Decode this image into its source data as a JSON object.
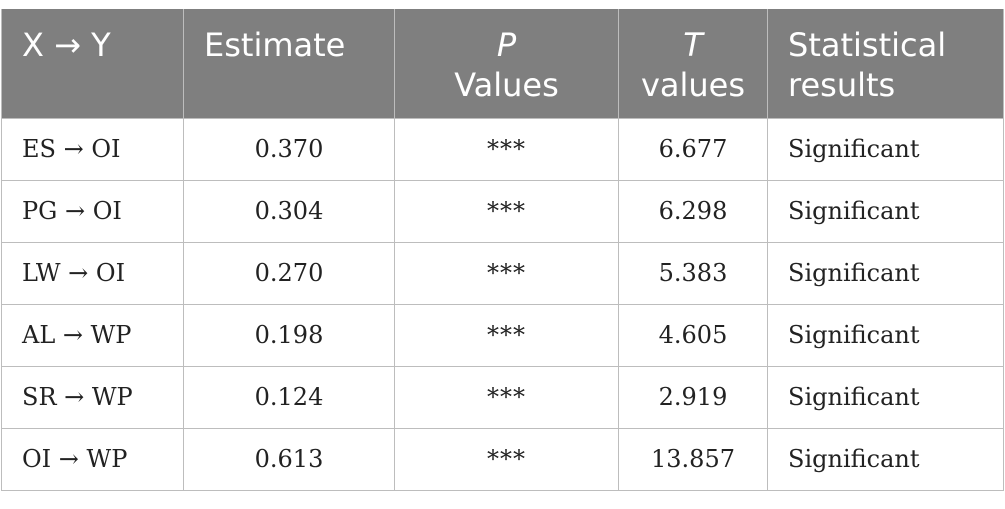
{
  "table": {
    "headers": [
      {
        "line1": "X → Y",
        "line2": ""
      },
      {
        "line1": "Estimate",
        "line2": ""
      },
      {
        "line1": "P",
        "line2": "Values"
      },
      {
        "line1": "T",
        "line2": "values"
      },
      {
        "line1": "Statistical",
        "line2": "results"
      }
    ],
    "rows": [
      {
        "path": "ES → OI",
        "estimate": "0.370",
        "p": "***",
        "t": "6.677",
        "result": "Significant"
      },
      {
        "path": "PG → OI",
        "estimate": "0.304",
        "p": "***",
        "t": "6.298",
        "result": "Significant"
      },
      {
        "path": "LW → OI",
        "estimate": "0.270",
        "p": "***",
        "t": "5.383",
        "result": "Significant"
      },
      {
        "path": "AL → WP",
        "estimate": "0.198",
        "p": "***",
        "t": "4.605",
        "result": "Significant"
      },
      {
        "path": "SR → WP",
        "estimate": "0.124",
        "p": "***",
        "t": "2.919",
        "result": "Significant"
      },
      {
        "path": "OI → WP",
        "estimate": "0.613",
        "p": "***",
        "t": "13.857",
        "result": "Significant"
      }
    ]
  },
  "colors": {
    "header_bg": "#7f7f7f",
    "header_text": "#ffffff",
    "border": "#bdbdbd",
    "body_text": "#222222"
  }
}
